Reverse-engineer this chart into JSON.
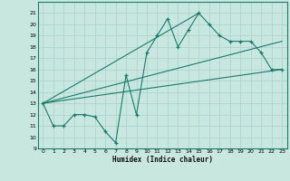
{
  "title": "",
  "xlabel": "Humidex (Indice chaleur)",
  "bg_color": "#c8e8df",
  "grid_color": "#b0d4cc",
  "line_color": "#1a7a6e",
  "ylim": [
    9,
    22
  ],
  "xlim": [
    -0.5,
    23.5
  ],
  "yticks": [
    9,
    10,
    11,
    12,
    13,
    14,
    15,
    16,
    17,
    18,
    19,
    20,
    21
  ],
  "xticks": [
    0,
    1,
    2,
    3,
    4,
    5,
    6,
    7,
    8,
    9,
    10,
    11,
    12,
    13,
    14,
    15,
    16,
    17,
    18,
    19,
    20,
    21,
    22,
    23
  ],
  "main_line_x": [
    0,
    1,
    2,
    3,
    4,
    5,
    6,
    7,
    8,
    9,
    10,
    11,
    12,
    13,
    14,
    15,
    16,
    17,
    18,
    19,
    20,
    21,
    22,
    23
  ],
  "main_line_y": [
    13,
    11,
    11,
    12,
    12,
    11.8,
    10.5,
    9.5,
    15.5,
    12,
    17.5,
    19,
    20.5,
    18,
    19.5,
    21,
    20,
    19,
    18.5,
    18.5,
    18.5,
    17.5,
    16,
    16
  ],
  "trend1_x": [
    0,
    23
  ],
  "trend1_y": [
    13,
    16
  ],
  "trend2_x": [
    0,
    23
  ],
  "trend2_y": [
    13,
    18.5
  ],
  "trend3_x": [
    0,
    15
  ],
  "trend3_y": [
    13,
    21
  ]
}
